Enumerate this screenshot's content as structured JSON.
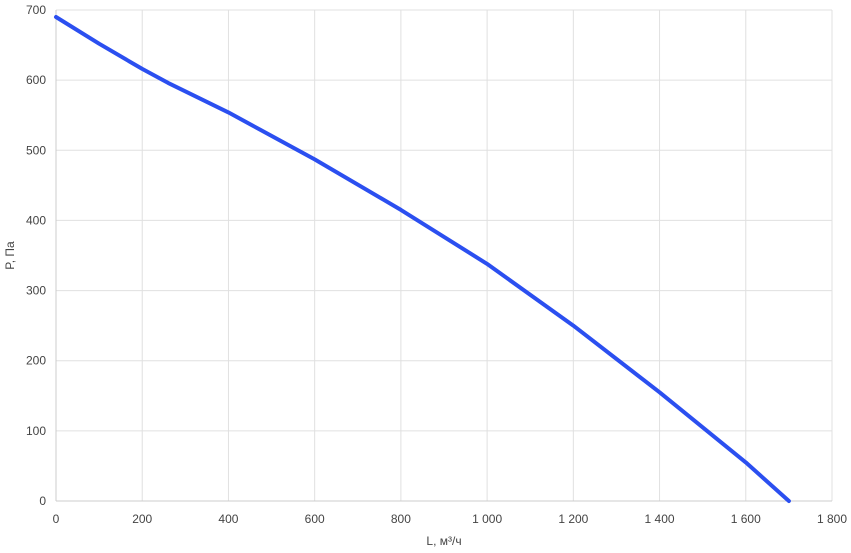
{
  "chart_data": {
    "type": "line",
    "title": "",
    "xlabel": "L, м³/ч",
    "ylabel": "P, Па",
    "xlim": [
      0,
      1800
    ],
    "ylim": [
      0,
      700
    ],
    "grid": true,
    "x_ticks": [
      {
        "value": 0,
        "label": "0"
      },
      {
        "value": 200,
        "label": "200"
      },
      {
        "value": 400,
        "label": "400"
      },
      {
        "value": 600,
        "label": "600"
      },
      {
        "value": 800,
        "label": "800"
      },
      {
        "value": 1000,
        "label": "1 000"
      },
      {
        "value": 1200,
        "label": "1 200"
      },
      {
        "value": 1400,
        "label": "1 400"
      },
      {
        "value": 1600,
        "label": "1 600"
      },
      {
        "value": 1800,
        "label": "1 800"
      }
    ],
    "y_ticks": [
      {
        "value": 0,
        "label": "0"
      },
      {
        "value": 100,
        "label": "100"
      },
      {
        "value": 200,
        "label": "200"
      },
      {
        "value": 300,
        "label": "300"
      },
      {
        "value": 400,
        "label": "400"
      },
      {
        "value": 500,
        "label": "500"
      },
      {
        "value": 600,
        "label": "600"
      },
      {
        "value": 700,
        "label": "700"
      }
    ],
    "series": [
      {
        "color": "#2b4ff0",
        "x": [
          0,
          100,
          200,
          260,
          400,
          600,
          800,
          1000,
          1200,
          1400,
          1600,
          1700
        ],
        "y": [
          690,
          652,
          616,
          596,
          554,
          487,
          415,
          338,
          250,
          155,
          55,
          0
        ]
      }
    ]
  }
}
